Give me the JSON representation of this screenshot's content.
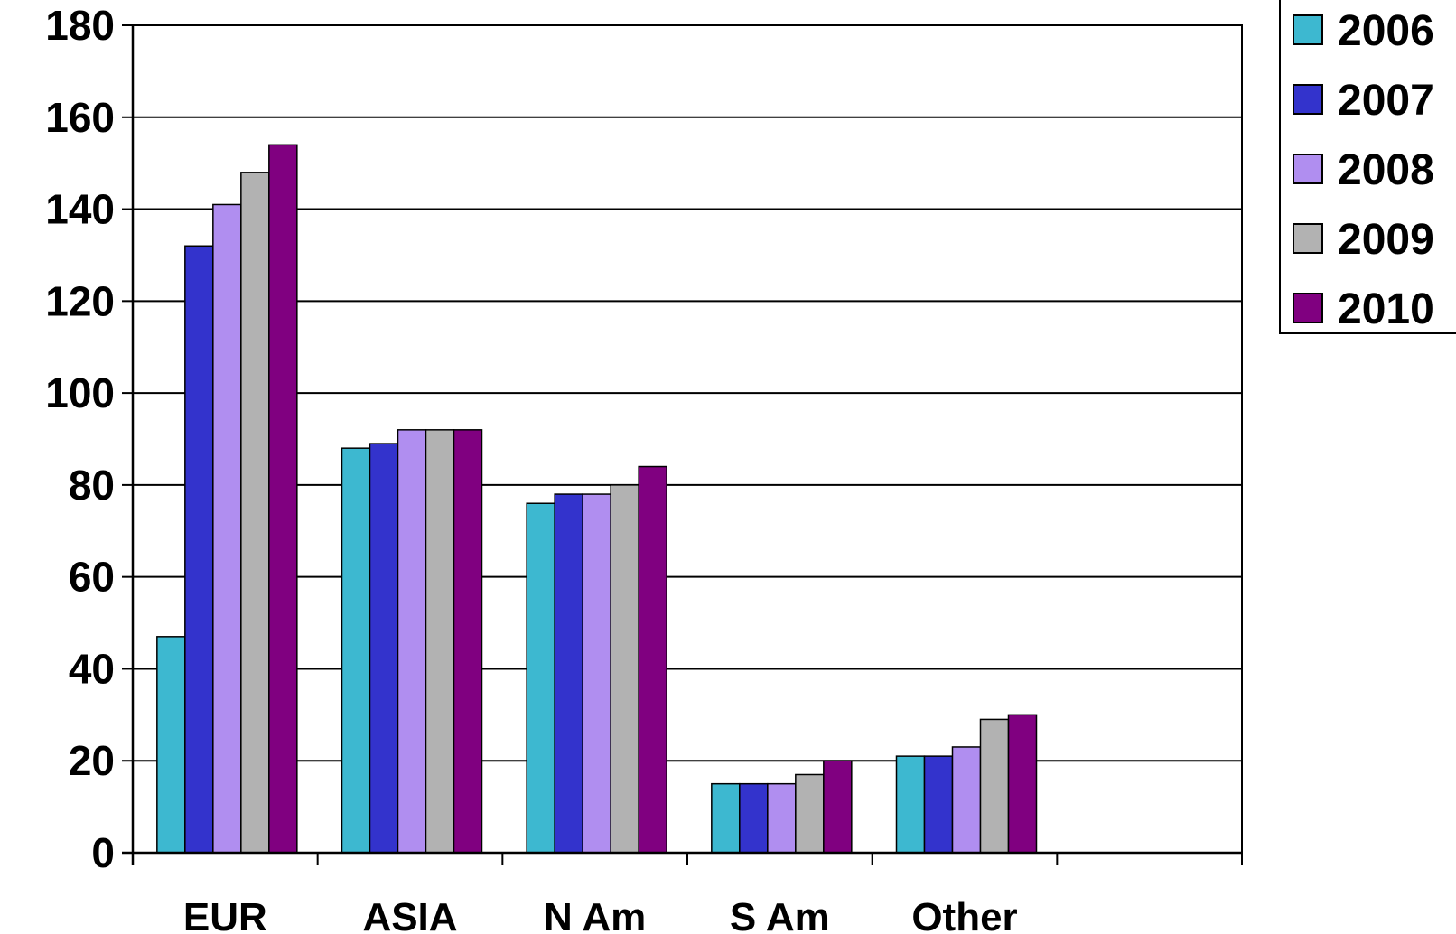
{
  "chart_data": {
    "type": "bar",
    "categories": [
      "EUR",
      "ASIA",
      "N Am",
      "S Am",
      "Other"
    ],
    "series": [
      {
        "name": "2006",
        "color": "#3db8d0",
        "values": [
          47,
          88,
          76,
          15,
          21
        ]
      },
      {
        "name": "2007",
        "color": "#3333cc",
        "values": [
          132,
          89,
          78,
          15,
          21
        ]
      },
      {
        "name": "2008",
        "color": "#b08ef0",
        "values": [
          141,
          92,
          78,
          15,
          23
        ]
      },
      {
        "name": "2009",
        "color": "#b2b2b2",
        "values": [
          148,
          92,
          80,
          17,
          29
        ]
      },
      {
        "name": "2010",
        "color": "#800080",
        "values": [
          154,
          92,
          84,
          20,
          30
        ]
      }
    ],
    "title": "",
    "xlabel": "",
    "ylabel": "",
    "ylim": [
      0,
      180
    ],
    "yticks": [
      "0",
      "20",
      "40",
      "60",
      "80",
      "100",
      "120",
      "140",
      "160",
      "180"
    ],
    "grid": true,
    "legend_position": "top-right"
  }
}
